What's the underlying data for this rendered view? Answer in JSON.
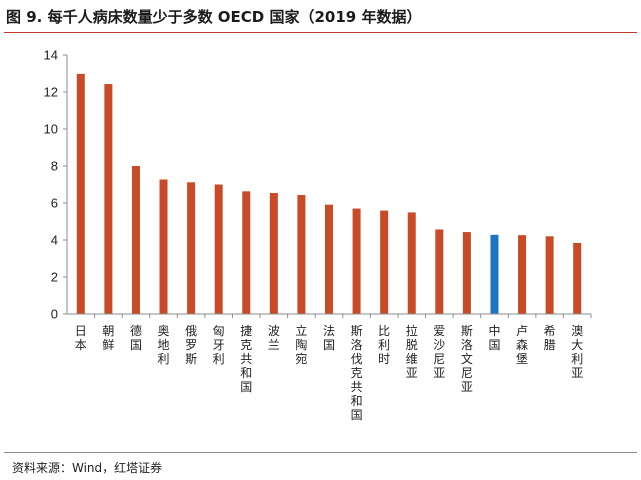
{
  "figure": {
    "title": "图 9. 每千人病床数量少于多数 OECD 国家（2019 年数据）",
    "source": "资料来源：Wind，红塔证券"
  },
  "colors": {
    "bar": "#C94A26",
    "highlight": "#1A76C4",
    "axis": "#8C8C8C",
    "title_rule": "#C0392B"
  },
  "chart_data": {
    "type": "bar",
    "title": "",
    "xlabel": "",
    "ylabel": "",
    "ylim": [
      0,
      14
    ],
    "yticks": [
      0,
      2,
      4,
      6,
      8,
      10,
      12,
      14
    ],
    "grid": false,
    "legend": "none",
    "highlight_category": "中国",
    "categories": [
      "日本",
      "朝鲜",
      "德国",
      "奥地利",
      "俄罗斯",
      "匈牙利",
      "捷克共和国",
      "波兰",
      "立陶宛",
      "法国",
      "斯洛伐克共和国",
      "比利时",
      "拉脱维亚",
      "爱沙尼亚",
      "斯洛文尼亚",
      "中国",
      "卢森堡",
      "希腊",
      "澳大利亚"
    ],
    "values": [
      12.98,
      12.43,
      8.0,
      7.27,
      7.12,
      7.0,
      6.63,
      6.54,
      6.43,
      5.91,
      5.7,
      5.59,
      5.49,
      4.57,
      4.43,
      4.28,
      4.26,
      4.2,
      3.84
    ]
  }
}
